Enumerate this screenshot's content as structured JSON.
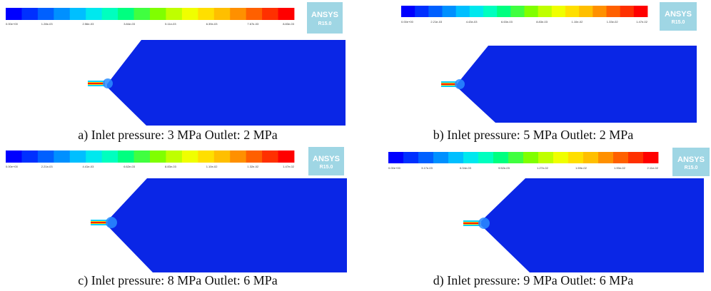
{
  "logo": {
    "brand": "ANSYS",
    "version": "R15.0",
    "bg": "#9fd6e4"
  },
  "colormap": [
    "#0000ff",
    "#0030ff",
    "#0060ff",
    "#0090ff",
    "#00bfff",
    "#00e8ee",
    "#00ffbf",
    "#00ff80",
    "#40ff40",
    "#80ff00",
    "#bfff00",
    "#f0ff00",
    "#ffdf00",
    "#ffbf00",
    "#ff9000",
    "#ff6000",
    "#ff3000",
    "#ff0000"
  ],
  "field_color": "#0a26e6",
  "panels": [
    {
      "caption": "a) Inlet pressure: 3 MPa Outlet: 2 MPa",
      "ticks": [
        "0.00e+00",
        "1.28e-03",
        "2.56e-03",
        "3.84e-03",
        "5.11e-03",
        "6.39e-03",
        "7.67e-03",
        "8.83e-03"
      ]
    },
    {
      "caption": "b) Inlet pressure: 5 MPa Outlet: 2 MPa",
      "ticks": [
        "0.00e+00",
        "2.21e-03",
        "4.43e-03",
        "6.63e-03",
        "8.83e-03",
        "1.10e-02",
        "1.33e-02",
        "1.47e-02"
      ]
    },
    {
      "caption": "c) Inlet pressure: 8 MPa Outlet: 6 MPa",
      "ticks": [
        "0.00e+00",
        "2.21e-03",
        "4.41e-03",
        "6.62e-03",
        "8.83e-03",
        "1.10e-02",
        "1.32e-02",
        "1.47e-02"
      ]
    },
    {
      "caption": "d) Inlet pressure: 9 MPa Outlet: 6 MPa",
      "ticks": [
        "0.00e+00",
        "3.17e-03",
        "6.34e-03",
        "9.52e-03",
        "1.27e-02",
        "1.59e-02",
        "1.90e-02",
        "2.11e-02"
      ]
    }
  ]
}
